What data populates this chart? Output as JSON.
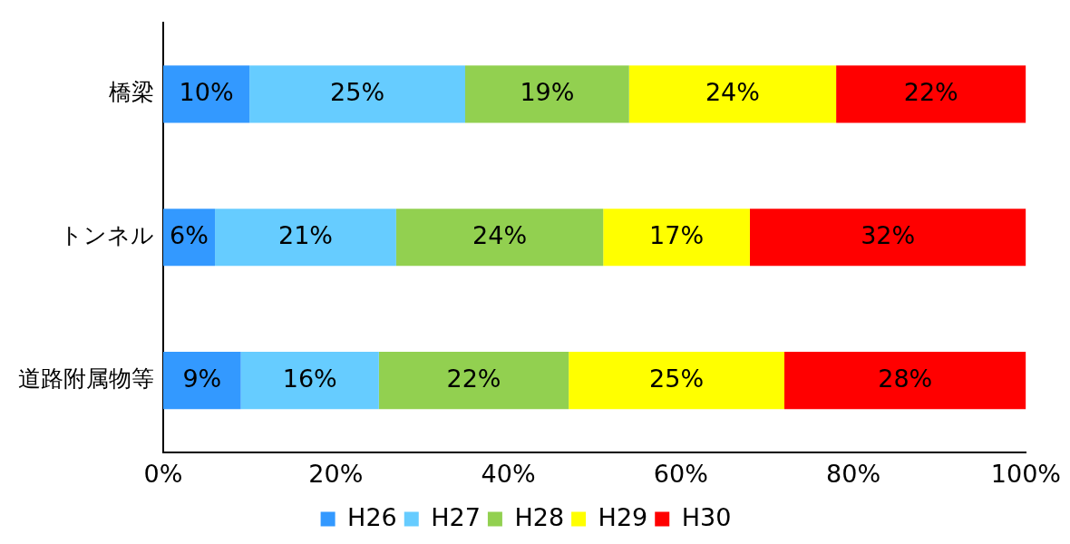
{
  "chart_data": {
    "type": "bar",
    "orientation": "horizontal",
    "stacked": true,
    "categories": [
      "橋梁",
      "トンネル",
      "道路附属物等"
    ],
    "series": [
      {
        "name": "H26",
        "color": "#3399ff",
        "values": [
          10,
          6,
          9
        ],
        "value_labels": [
          "10%",
          "6%",
          "9%"
        ]
      },
      {
        "name": "H27",
        "color": "#66ccff",
        "values": [
          25,
          21,
          16
        ],
        "value_labels": [
          "25%",
          "21%",
          "16%"
        ]
      },
      {
        "name": "H28",
        "color": "#92d050",
        "values": [
          19,
          24,
          22
        ],
        "value_labels": [
          "19%",
          "24%",
          "22%"
        ]
      },
      {
        "name": "H29",
        "color": "#ffff00",
        "values": [
          24,
          17,
          25
        ],
        "value_labels": [
          "24%",
          "17%",
          "25%"
        ]
      },
      {
        "name": "H30",
        "color": "#ff0000",
        "values": [
          22,
          32,
          28
        ],
        "value_labels": [
          "22%",
          "32%",
          "28%"
        ]
      }
    ],
    "xlim": [
      0,
      100
    ],
    "xticks": [
      {
        "value": 0,
        "label": "0%"
      },
      {
        "value": 20,
        "label": "20%"
      },
      {
        "value": 40,
        "label": "40%"
      },
      {
        "value": 60,
        "label": "60%"
      },
      {
        "value": 80,
        "label": "80%"
      },
      {
        "value": 100,
        "label": "100%"
      }
    ],
    "grid": false,
    "legend": "bottom"
  }
}
